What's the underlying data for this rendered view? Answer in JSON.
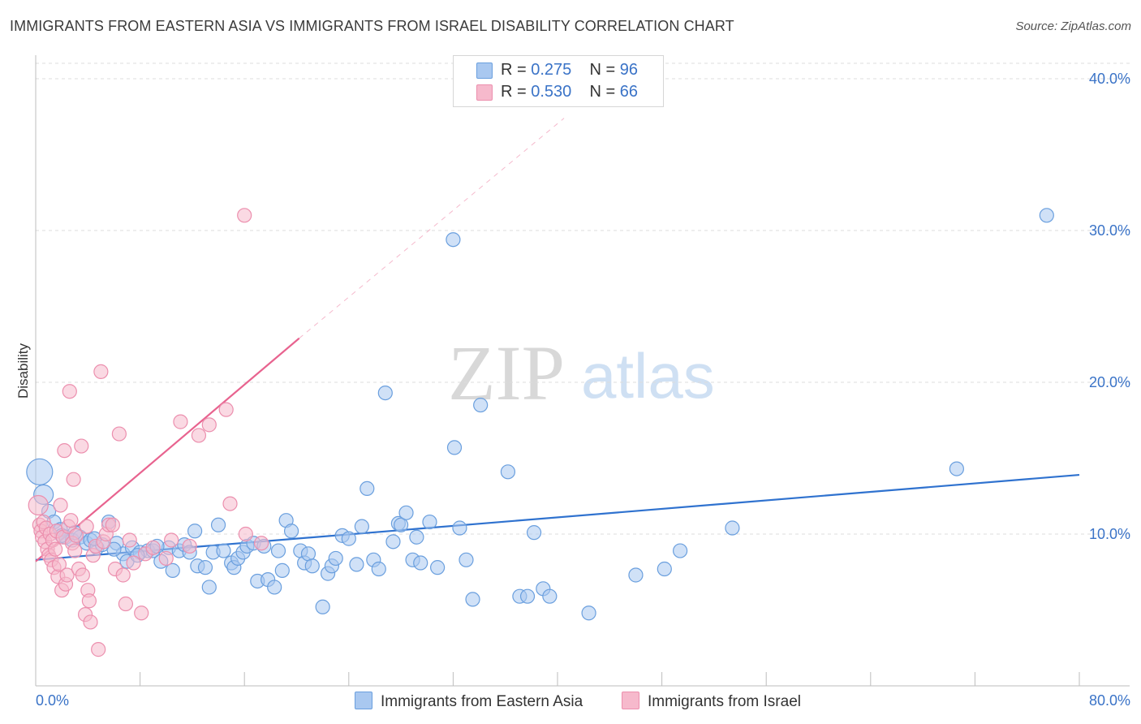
{
  "title": "IMMIGRANTS FROM EASTERN ASIA VS IMMIGRANTS FROM ISRAEL DISABILITY CORRELATION CHART",
  "source": "Source: ZipAtlas.com",
  "watermark": {
    "part1": "ZIP",
    "part2": "atlas"
  },
  "colors": {
    "blue_fill": "#a9c8f0",
    "blue_stroke": "#6a9fde",
    "blue_line": "#2f72cf",
    "pink_fill": "#f6b9cc",
    "pink_stroke": "#ec8fae",
    "pink_line": "#e8638f",
    "grid": "#dcdcdc",
    "axis": "#bdbdbd",
    "label": "#3a73c7"
  },
  "legend": {
    "rows": [
      {
        "r_label": "R = ",
        "r_value": "0.275",
        "n_label": "N = ",
        "n_value": "96"
      },
      {
        "r_label": "R = ",
        "r_value": "0.530",
        "n_label": "N = ",
        "n_value": "66"
      }
    ]
  },
  "bottom_legend": {
    "series1": "Immigrants from Eastern Asia",
    "series2": "Immigrants from Israel"
  },
  "chart_data": {
    "type": "scatter",
    "title": "IMMIGRANTS FROM EASTERN ASIA VS IMMIGRANTS FROM ISRAEL DISABILITY CORRELATION CHART",
    "xlabel": "",
    "ylabel": "Disability",
    "xlim": [
      0,
      80
    ],
    "ylim": [
      0,
      40
    ],
    "x_tick_labels": [
      "0.0%",
      "80.0%"
    ],
    "y_tick_labels": [
      "10.0%",
      "20.0%",
      "30.0%",
      "40.0%"
    ],
    "y_ticks": [
      10,
      20,
      30,
      40
    ],
    "x_minor_ticks": [
      0,
      8,
      16,
      24,
      32,
      40,
      48,
      56,
      64,
      72,
      80
    ],
    "grid": true,
    "legend_position": "top-center",
    "series": [
      {
        "name": "Immigrants from Eastern Asia",
        "R": 0.275,
        "N": 96,
        "trend": {
          "x0": 0,
          "y0": 8.3,
          "x1": 80,
          "y1": 13.9
        },
        "points": [
          {
            "x": 0.3,
            "y": 14.1,
            "s": 3
          },
          {
            "x": 0.6,
            "y": 12.6,
            "s": 2
          },
          {
            "x": 1.0,
            "y": 11.5
          },
          {
            "x": 1.4,
            "y": 10.8
          },
          {
            "x": 1.9,
            "y": 10.3
          },
          {
            "x": 2.3,
            "y": 9.8
          },
          {
            "x": 2.8,
            "y": 9.6
          },
          {
            "x": 3.4,
            "y": 9.8
          },
          {
            "x": 3.9,
            "y": 9.4
          },
          {
            "x": 4.2,
            "y": 9.6
          },
          {
            "x": 4.7,
            "y": 9.1
          },
          {
            "x": 5.1,
            "y": 9.3
          },
          {
            "x": 5.6,
            "y": 10.8
          },
          {
            "x": 6.2,
            "y": 9.4
          },
          {
            "x": 6.7,
            "y": 8.7
          },
          {
            "x": 7.0,
            "y": 8.2
          },
          {
            "x": 7.4,
            "y": 9.1
          },
          {
            "x": 8.0,
            "y": 8.8
          },
          {
            "x": 8.6,
            "y": 8.9
          },
          {
            "x": 9.0,
            "y": 8.9
          },
          {
            "x": 9.6,
            "y": 8.2
          },
          {
            "x": 10.2,
            "y": 9.1
          },
          {
            "x": 10.5,
            "y": 7.6
          },
          {
            "x": 11.0,
            "y": 8.9
          },
          {
            "x": 11.4,
            "y": 9.3
          },
          {
            "x": 11.8,
            "y": 8.8
          },
          {
            "x": 12.2,
            "y": 10.2
          },
          {
            "x": 12.4,
            "y": 7.9
          },
          {
            "x": 13.0,
            "y": 7.8
          },
          {
            "x": 13.3,
            "y": 6.5
          },
          {
            "x": 13.6,
            "y": 8.8
          },
          {
            "x": 14.0,
            "y": 10.6
          },
          {
            "x": 14.4,
            "y": 8.9
          },
          {
            "x": 15.0,
            "y": 8.1
          },
          {
            "x": 15.2,
            "y": 7.8
          },
          {
            "x": 15.5,
            "y": 8.4
          },
          {
            "x": 15.9,
            "y": 8.8
          },
          {
            "x": 16.2,
            "y": 9.2
          },
          {
            "x": 16.7,
            "y": 9.4
          },
          {
            "x": 17.0,
            "y": 6.9
          },
          {
            "x": 17.5,
            "y": 9.2
          },
          {
            "x": 17.8,
            "y": 7.0
          },
          {
            "x": 18.3,
            "y": 6.5
          },
          {
            "x": 18.6,
            "y": 8.9
          },
          {
            "x": 18.9,
            "y": 7.6
          },
          {
            "x": 19.2,
            "y": 10.9
          },
          {
            "x": 19.6,
            "y": 10.2
          },
          {
            "x": 20.3,
            "y": 8.9
          },
          {
            "x": 20.6,
            "y": 8.1
          },
          {
            "x": 20.9,
            "y": 8.7
          },
          {
            "x": 21.2,
            "y": 7.9
          },
          {
            "x": 22.0,
            "y": 5.2
          },
          {
            "x": 22.4,
            "y": 7.4
          },
          {
            "x": 22.7,
            "y": 7.9
          },
          {
            "x": 23.0,
            "y": 8.4
          },
          {
            "x": 23.5,
            "y": 9.9
          },
          {
            "x": 24.0,
            "y": 9.7
          },
          {
            "x": 24.6,
            "y": 8.0
          },
          {
            "x": 25.0,
            "y": 10.5
          },
          {
            "x": 25.4,
            "y": 13.0
          },
          {
            "x": 25.9,
            "y": 8.3
          },
          {
            "x": 26.3,
            "y": 7.7
          },
          {
            "x": 26.8,
            "y": 19.3
          },
          {
            "x": 27.4,
            "y": 9.5
          },
          {
            "x": 27.8,
            "y": 10.7
          },
          {
            "x": 28.0,
            "y": 10.6
          },
          {
            "x": 28.4,
            "y": 11.4
          },
          {
            "x": 28.9,
            "y": 8.3
          },
          {
            "x": 29.2,
            "y": 9.8
          },
          {
            "x": 29.5,
            "y": 8.1
          },
          {
            "x": 30.2,
            "y": 10.8
          },
          {
            "x": 30.8,
            "y": 7.8
          },
          {
            "x": 32.0,
            "y": 29.4
          },
          {
            "x": 32.1,
            "y": 15.7
          },
          {
            "x": 32.5,
            "y": 10.4
          },
          {
            "x": 33.0,
            "y": 8.3
          },
          {
            "x": 33.5,
            "y": 5.7
          },
          {
            "x": 34.1,
            "y": 18.5
          },
          {
            "x": 36.2,
            "y": 14.1
          },
          {
            "x": 37.1,
            "y": 5.9
          },
          {
            "x": 37.7,
            "y": 5.9
          },
          {
            "x": 38.2,
            "y": 10.1
          },
          {
            "x": 38.9,
            "y": 6.4
          },
          {
            "x": 39.4,
            "y": 5.9
          },
          {
            "x": 42.4,
            "y": 4.8
          },
          {
            "x": 46.0,
            "y": 7.3
          },
          {
            "x": 48.2,
            "y": 7.7
          },
          {
            "x": 49.4,
            "y": 8.9
          },
          {
            "x": 53.4,
            "y": 10.4
          },
          {
            "x": 70.6,
            "y": 14.3
          },
          {
            "x": 77.5,
            "y": 31.0
          },
          {
            "x": 2.0,
            "y": 9.9
          },
          {
            "x": 3.0,
            "y": 10.1
          },
          {
            "x": 4.5,
            "y": 9.7
          },
          {
            "x": 6.0,
            "y": 9.0
          },
          {
            "x": 7.8,
            "y": 8.6
          },
          {
            "x": 9.3,
            "y": 9.2
          }
        ]
      },
      {
        "name": "Immigrants from Israel",
        "R": 0.53,
        "N": 66,
        "trend": {
          "x0": 0,
          "y0": 8.2,
          "x1": 20.2,
          "y1": 22.9
        },
        "trend_extension": {
          "x0": 20.2,
          "y0": 22.9,
          "x1": 40.5,
          "y1": 37.4
        },
        "points": [
          {
            "x": 0.2,
            "y": 11.9,
            "s": 2
          },
          {
            "x": 0.3,
            "y": 10.6
          },
          {
            "x": 0.4,
            "y": 10.2
          },
          {
            "x": 0.5,
            "y": 9.8
          },
          {
            "x": 0.6,
            "y": 10.8
          },
          {
            "x": 0.7,
            "y": 9.5
          },
          {
            "x": 0.8,
            "y": 10.4
          },
          {
            "x": 0.9,
            "y": 9.0
          },
          {
            "x": 1.0,
            "y": 8.6
          },
          {
            "x": 1.1,
            "y": 10.0
          },
          {
            "x": 1.2,
            "y": 8.3
          },
          {
            "x": 1.3,
            "y": 9.6
          },
          {
            "x": 1.4,
            "y": 7.8
          },
          {
            "x": 1.5,
            "y": 9.0
          },
          {
            "x": 1.6,
            "y": 10.2
          },
          {
            "x": 1.7,
            "y": 7.2
          },
          {
            "x": 1.8,
            "y": 8.0
          },
          {
            "x": 1.9,
            "y": 11.9
          },
          {
            "x": 2.0,
            "y": 6.3
          },
          {
            "x": 2.1,
            "y": 9.8
          },
          {
            "x": 2.2,
            "y": 15.5
          },
          {
            "x": 2.3,
            "y": 6.7
          },
          {
            "x": 2.4,
            "y": 7.3
          },
          {
            "x": 2.5,
            "y": 10.5
          },
          {
            "x": 2.6,
            "y": 19.4
          },
          {
            "x": 2.7,
            "y": 10.9
          },
          {
            "x": 2.8,
            "y": 9.4
          },
          {
            "x": 2.9,
            "y": 13.6
          },
          {
            "x": 3.0,
            "y": 8.9
          },
          {
            "x": 3.1,
            "y": 9.9
          },
          {
            "x": 3.3,
            "y": 7.7
          },
          {
            "x": 3.5,
            "y": 15.8
          },
          {
            "x": 3.6,
            "y": 7.3
          },
          {
            "x": 3.8,
            "y": 4.7
          },
          {
            "x": 3.9,
            "y": 10.5
          },
          {
            "x": 4.0,
            "y": 6.3
          },
          {
            "x": 4.1,
            "y": 5.6
          },
          {
            "x": 4.2,
            "y": 4.2
          },
          {
            "x": 4.4,
            "y": 8.6
          },
          {
            "x": 4.6,
            "y": 9.2
          },
          {
            "x": 4.8,
            "y": 2.4
          },
          {
            "x": 5.0,
            "y": 20.7
          },
          {
            "x": 5.2,
            "y": 9.5
          },
          {
            "x": 5.4,
            "y": 10.0
          },
          {
            "x": 5.6,
            "y": 10.6
          },
          {
            "x": 5.9,
            "y": 10.6
          },
          {
            "x": 6.1,
            "y": 7.7
          },
          {
            "x": 6.4,
            "y": 16.6
          },
          {
            "x": 6.7,
            "y": 7.3
          },
          {
            "x": 6.9,
            "y": 5.4
          },
          {
            "x": 7.2,
            "y": 9.6
          },
          {
            "x": 7.5,
            "y": 8.1
          },
          {
            "x": 8.1,
            "y": 4.8
          },
          {
            "x": 8.4,
            "y": 8.7
          },
          {
            "x": 9.0,
            "y": 9.1
          },
          {
            "x": 10.0,
            "y": 8.4
          },
          {
            "x": 10.4,
            "y": 9.6
          },
          {
            "x": 11.1,
            "y": 17.4
          },
          {
            "x": 11.8,
            "y": 9.2
          },
          {
            "x": 12.5,
            "y": 16.5
          },
          {
            "x": 13.3,
            "y": 17.2
          },
          {
            "x": 14.6,
            "y": 18.2
          },
          {
            "x": 14.9,
            "y": 12.0
          },
          {
            "x": 16.1,
            "y": 10.0
          },
          {
            "x": 17.3,
            "y": 9.4
          },
          {
            "x": 16.0,
            "y": 31.0
          }
        ]
      }
    ]
  }
}
